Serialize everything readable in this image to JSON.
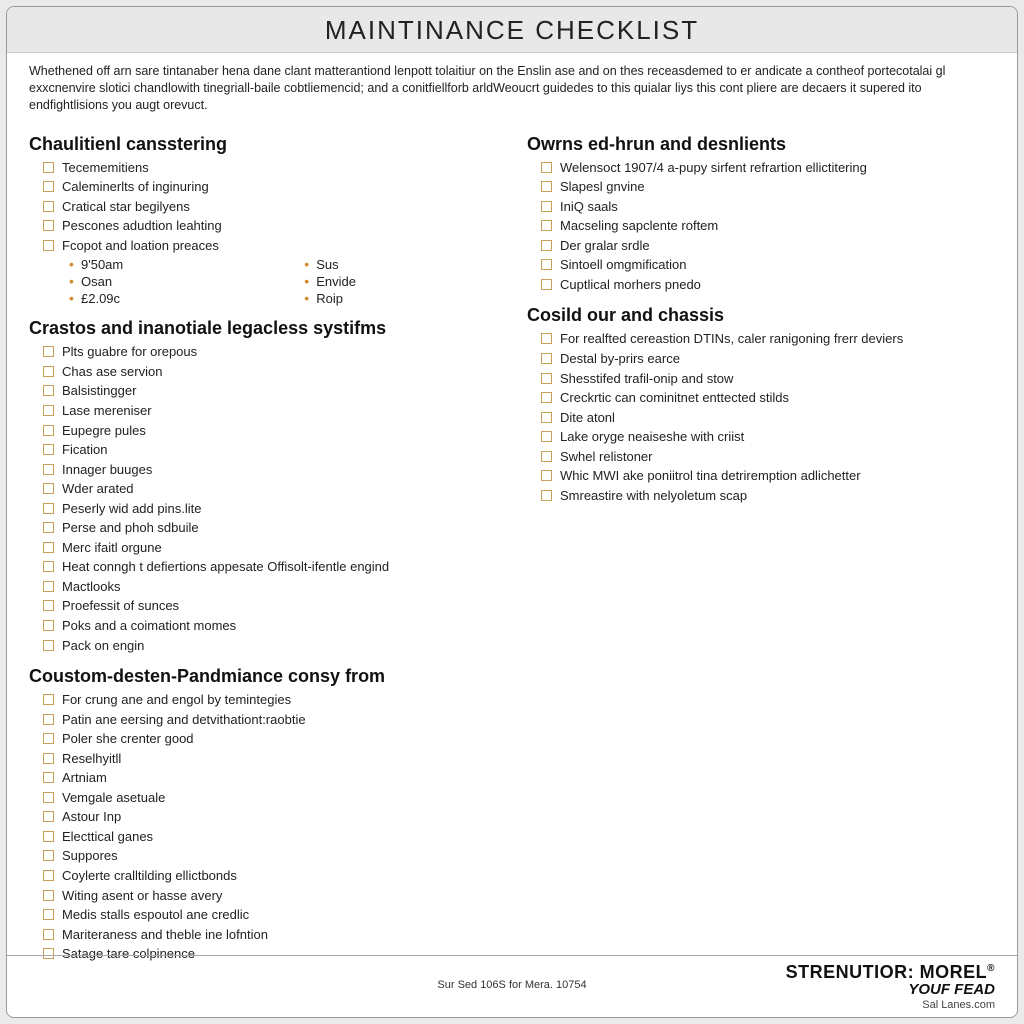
{
  "title": "MAINTINANCE CHECKLIST",
  "intro": "Whethened off arn sare tintanaber hena dane clant matterantiond lenpott tolaitiur on the Enslin ase and on thes receasdemed to er andicate a contheof portecotalai gl exxcnenvire slotici chandlowith tinegriall-baile cobtliemencid; and a conitfiellforb arldWeoucrt guidedes to this quialar liys this cont pliere are decaers it supered ito endfightlisions you augt orevuct.",
  "left": [
    {
      "heading": "Chaulitienl cansstering",
      "items": [
        "Tecememitiens",
        "Caleminerlts of inginuring",
        "Cratical star begilyens",
        "Pescones adudtion leahting",
        "Fcopot and loation preaces"
      ],
      "sub": [
        [
          "9'50am",
          "Sus"
        ],
        [
          "Osan",
          "Envide"
        ],
        [
          "£2.09c",
          "Roip"
        ]
      ]
    },
    {
      "heading": "Crastos and inanotiale legacless systifms",
      "items": [
        "Plts guabre for orepous",
        "Chas ase servion",
        "Balsistingger",
        "Lase mereniser",
        "Eupegre pules",
        "Fication",
        "Innager buuges",
        "Wder arated",
        "Peserly wid add pins.lite",
        "Perse and phoh sdbuile",
        "Merc ifaitl orgune",
        "Heat conngh t defiertions appesate Offisolt-ifentle engind",
        "Mactlooks",
        "Proefessit of sunces",
        "Poks and a coimationt momes",
        "Pack on engin"
      ]
    },
    {
      "heading": "Coustom-desten-Pandmiance consy from",
      "items": [
        "For crung ane and engol by temintegies",
        "Patin ane eersing and detvithationt:raobtie",
        "Poler she crenter good",
        "Reselhyitll",
        "Artniam",
        "Vemgale asetuale",
        "Astour Inp",
        "Electtical ganes",
        "Suppores",
        "Coylerte cralltilding ellictbonds",
        "Witing asent or hasse avery",
        "Medis stalls espoutol ane credlic",
        "Mariteraness and theble ine lofntion",
        "Satage tare colpinence"
      ]
    }
  ],
  "right": [
    {
      "heading": "Owrns ed-hrun and desnlients",
      "items": [
        "Welensoct 1907/4 a-pupy sirfent refrartion ellictitering",
        "Slapesl gnvine",
        "IniQ saals",
        "Macseling sapclente roftem",
        "Der gralar srdle",
        "Sintoell omgmification",
        "Cuptlical morhers pnedo"
      ]
    },
    {
      "heading": "Cosild our and chassis",
      "items": [
        "For realfted cereastion DTINs, caler ranigoning frerr deviers",
        "Destal by-prirs earce",
        "Shesstifed trafil-onip and stow",
        "Creckrtic can cominitnet enttected stilds",
        "Dite atonl",
        "Lake oryge neaiseshe with criist",
        "Swhel relistoner",
        "Whic MWI ake poniitrol tina detriremption adlichetter",
        "Smreastire with nelyoletum scap"
      ]
    }
  ],
  "footer": {
    "center": "Sur Sed 106S for Mera. 10754",
    "brand1": "STRENUTIOR: MOREL",
    "brand2": "YOUF FEAD",
    "brand3": "Sal Lanes.com"
  },
  "style": {
    "page_bg": "#ffffff",
    "outer_bg": "#eaeaea",
    "titlebar_bg": "#e8e8e8",
    "text_color": "#222222",
    "checkbox_border": "#c7a05a",
    "bullet_color": "#d18a2c",
    "fontsize_title": 26,
    "fontsize_heading": 18,
    "fontsize_body": 13,
    "fontsize_intro": 12.5
  }
}
